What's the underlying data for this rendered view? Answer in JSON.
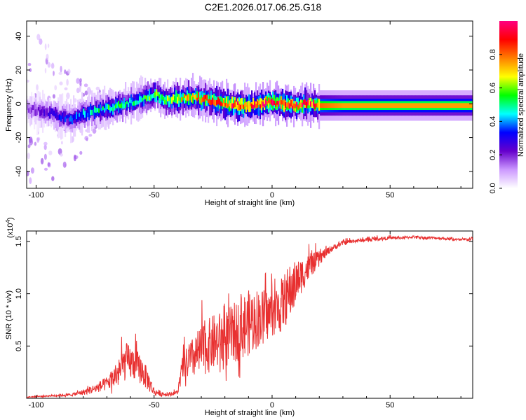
{
  "title": "C2E1.2026.017.06.25.G18",
  "chart_data": [
    {
      "type": "heatmap",
      "name": "spectrogram",
      "xlabel": "Height of straight line (km)",
      "ylabel": "Frequency (Hz)",
      "xlim": [
        -104,
        85
      ],
      "ylim": [
        -50,
        49
      ],
      "xticks": [
        -100,
        -50,
        0,
        50
      ],
      "yticks": [
        -40,
        -20,
        0,
        20,
        40
      ],
      "ridge": {
        "x": [
          -104,
          -100,
          -95,
          -90,
          -85,
          -80,
          -75,
          -70,
          -65,
          -60,
          -55,
          -50,
          -45,
          -40,
          -35,
          -30,
          -25,
          -20,
          -15,
          -10,
          -5,
          0,
          5,
          10,
          15,
          20,
          30,
          40,
          50,
          60,
          70,
          85
        ],
        "y": [
          -3,
          -4,
          -5,
          -8,
          -9,
          -6,
          -4,
          -3,
          -1,
          1,
          3,
          6,
          2,
          3,
          4,
          3,
          2,
          0,
          -1,
          -1,
          0,
          1,
          0,
          -1,
          0,
          -1,
          -1,
          -1,
          -1,
          -1,
          -1,
          -1
        ],
        "amplitude": [
          0.15,
          0.2,
          0.25,
          0.3,
          0.35,
          0.4,
          0.45,
          0.5,
          0.5,
          0.5,
          0.5,
          0.55,
          0.6,
          0.65,
          0.7,
          0.75,
          0.8,
          0.85,
          0.85,
          0.85,
          0.9,
          0.9,
          0.9,
          0.9,
          0.85,
          0.8,
          0.75,
          0.75,
          0.75,
          0.75,
          0.75,
          0.75
        ]
      },
      "colorbar": {
        "label": "Normalized spectral amplitude",
        "range": [
          0.0,
          1.0
        ],
        "ticks": [
          "0.0",
          "0.2",
          "0.4",
          "0.6",
          "0.8"
        ],
        "tick_values": [
          0.0,
          0.2,
          0.4,
          0.6,
          0.8
        ],
        "colors": [
          "#ffffff",
          "#cc99ff",
          "#6600cc",
          "#0000ff",
          "#00ffff",
          "#00ff00",
          "#ffff00",
          "#ff7f00",
          "#ff0000",
          "#ff0080"
        ]
      }
    },
    {
      "type": "line",
      "name": "snr",
      "xlabel": "Height of straight line (km)",
      "ylabel": "SNR (10 * v/v)",
      "scale_label": "(x10",
      "scale_exponent": "4",
      "scale_close": ")",
      "xlim": [
        -104,
        85
      ],
      "ylim": [
        0,
        1.6
      ],
      "xticks": [
        -100,
        -50,
        0,
        50
      ],
      "yticks": [
        0.5,
        1.0,
        1.5
      ],
      "ytick_labels": [
        "0.5",
        "1.0",
        "1.5"
      ],
      "color": "#e83030",
      "envelope": {
        "x": [
          -104,
          -95,
          -85,
          -80,
          -75,
          -70,
          -65,
          -62,
          -58,
          -55,
          -52,
          -50,
          -45,
          -42,
          -40,
          -38,
          -35,
          -30,
          -25,
          -20,
          -15,
          -12,
          -8,
          -5,
          -2,
          0,
          3,
          5,
          8,
          10,
          15,
          20,
          25,
          30,
          35,
          40,
          45,
          50,
          55,
          60,
          65,
          70,
          75,
          80,
          85
        ],
        "y": [
          0.01,
          0.02,
          0.03,
          0.05,
          0.08,
          0.12,
          0.2,
          0.3,
          0.28,
          0.22,
          0.12,
          0.05,
          0.03,
          0.04,
          0.05,
          0.25,
          0.3,
          0.38,
          0.45,
          0.48,
          0.55,
          0.6,
          0.65,
          0.7,
          0.72,
          0.75,
          0.78,
          0.85,
          0.95,
          1.05,
          1.2,
          1.32,
          1.42,
          1.48,
          1.5,
          1.51,
          1.52,
          1.53,
          1.53,
          1.54,
          1.53,
          1.53,
          1.52,
          1.51,
          1.52
        ],
        "noise": [
          0.01,
          0.02,
          0.03,
          0.06,
          0.1,
          0.15,
          0.3,
          0.4,
          0.35,
          0.3,
          0.2,
          0.08,
          0.04,
          0.04,
          0.05,
          0.28,
          0.4,
          0.55,
          0.6,
          0.62,
          0.65,
          0.7,
          0.7,
          0.6,
          0.55,
          0.5,
          0.55,
          0.6,
          0.6,
          0.45,
          0.3,
          0.15,
          0.07,
          0.05,
          0.04,
          0.04,
          0.04,
          0.03,
          0.03,
          0.03,
          0.03,
          0.03,
          0.03,
          0.03,
          0.04
        ]
      }
    }
  ]
}
